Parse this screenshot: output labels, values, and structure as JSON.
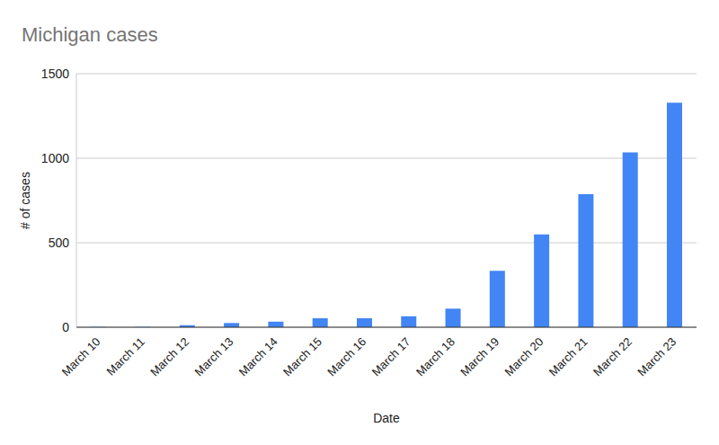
{
  "chart_data": {
    "type": "bar",
    "title": "Michigan cases",
    "x_label": "Date",
    "y_label": "# of cases",
    "categories": [
      "March 10",
      "March 11",
      "March 12",
      "March 13",
      "March 14",
      "March 15",
      "March 16",
      "March 17",
      "March 18",
      "March 19",
      "March 20",
      "March 21",
      "March 22",
      "March 23"
    ],
    "values": [
      2,
      2,
      12,
      25,
      33,
      53,
      53,
      65,
      110,
      334,
      549,
      787,
      1035,
      1328
    ],
    "color": "#4285f4",
    "ylim": [
      0,
      1500
    ],
    "yticks": [
      0,
      500,
      1000,
      1500
    ],
    "grid": true
  }
}
